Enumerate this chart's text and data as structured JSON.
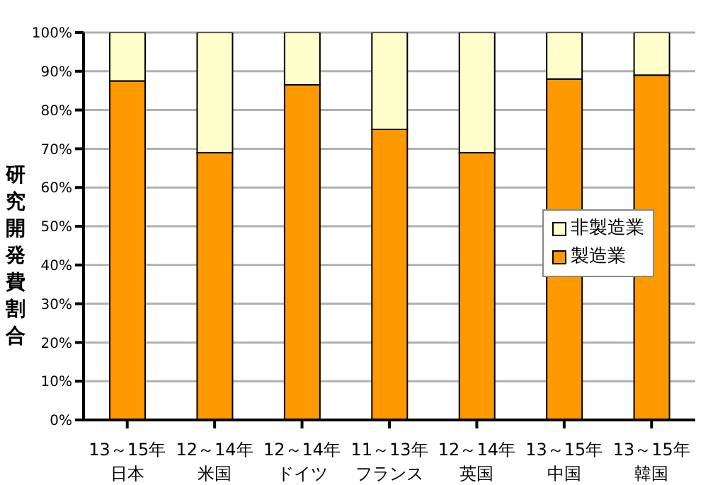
{
  "chart_data": {
    "type": "bar",
    "stacked": true,
    "ylabel": "研究開発費割合",
    "categories": [
      "13～15年日本",
      "12～14年米国",
      "12～14年ドイツ",
      "11～13年フランス",
      "12～14年英国",
      "13～15年中国",
      "13～15年韓国"
    ],
    "series": [
      {
        "name": "製造業",
        "color": "#ff9900",
        "values": [
          87.5,
          69,
          86.5,
          75,
          69,
          88,
          89
        ]
      },
      {
        "name": "非製造業",
        "color": "#ffffcc",
        "values": [
          12.5,
          31,
          13.5,
          25,
          31,
          12,
          11
        ]
      }
    ],
    "ylim": [
      0,
      100
    ],
    "yticks": [
      {
        "value": 0,
        "label": "0%"
      },
      {
        "value": 10,
        "label": "10%"
      },
      {
        "value": 20,
        "label": "20%"
      },
      {
        "value": 30,
        "label": "30%"
      },
      {
        "value": 40,
        "label": "40%"
      },
      {
        "value": 50,
        "label": "50%"
      },
      {
        "value": 60,
        "label": "60%"
      },
      {
        "value": 70,
        "label": "70%"
      },
      {
        "value": 80,
        "label": "80%"
      },
      {
        "value": 90,
        "label": "90%"
      },
      {
        "value": 100,
        "label": "100%"
      }
    ],
    "grid": "y",
    "legend": "right"
  }
}
